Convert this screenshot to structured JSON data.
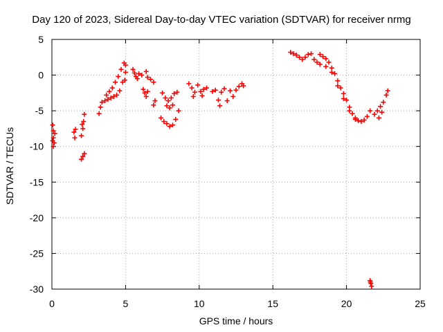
{
  "chart_data": {
    "type": "scatter",
    "title": "Day 120 of 2023, Sidereal Day-to-day VTEC variation (SDTVAR) for receiver nrmg",
    "xlabel": "GPS time / hours",
    "ylabel": "SDTVAR / TECUs",
    "xlim": [
      0,
      25
    ],
    "ylim": [
      -30,
      5
    ],
    "xticks": [
      "0",
      "5",
      "10",
      "15",
      "20",
      "25"
    ],
    "yticks": [
      "5",
      "0",
      "-5",
      "-10",
      "-15",
      "-20",
      "-25",
      "-30"
    ],
    "grid": true,
    "legend": "none",
    "marker": "plus",
    "color": "#ff0000",
    "series": [
      {
        "name": "SDTVAR",
        "points": [
          [
            0.05,
            -7.0
          ],
          [
            0.1,
            -7.8
          ],
          [
            0.1,
            -8.8
          ],
          [
            0.15,
            -9.5
          ],
          [
            0.1,
            -10.0
          ],
          [
            0.2,
            -8.2
          ],
          [
            0.05,
            -9.2
          ],
          [
            1.5,
            -8.0
          ],
          [
            1.55,
            -8.8
          ],
          [
            1.6,
            -7.6
          ],
          [
            2.0,
            -8.5
          ],
          [
            2.1,
            -7.5
          ],
          [
            2.15,
            -6.5
          ],
          [
            2.2,
            -5.5
          ],
          [
            2.05,
            -6.9
          ],
          [
            2.0,
            -11.8
          ],
          [
            2.1,
            -11.4
          ],
          [
            2.2,
            -11.0
          ],
          [
            3.2,
            -5.4
          ],
          [
            3.3,
            -4.5
          ],
          [
            3.4,
            -3.8
          ],
          [
            3.6,
            -3.6
          ],
          [
            3.8,
            -3.4
          ],
          [
            4.0,
            -3.2
          ],
          [
            4.2,
            -3.0
          ],
          [
            4.4,
            -2.8
          ],
          [
            4.6,
            -2.2
          ],
          [
            4.8,
            -1.0
          ],
          [
            3.7,
            -2.8
          ],
          [
            3.9,
            -2.3
          ],
          [
            4.1,
            -1.8
          ],
          [
            4.3,
            -1.0
          ],
          [
            4.5,
            -0.2
          ],
          [
            4.7,
            0.8
          ],
          [
            4.9,
            1.7
          ],
          [
            5.0,
            1.4
          ],
          [
            5.0,
            0.4
          ],
          [
            4.95,
            -0.7
          ],
          [
            5.5,
            0.8
          ],
          [
            5.6,
            0.3
          ],
          [
            5.7,
            -0.2
          ],
          [
            5.8,
            -0.5
          ],
          [
            5.9,
            0.2
          ],
          [
            6.1,
            0.0
          ],
          [
            6.4,
            0.5
          ],
          [
            6.5,
            -0.3
          ],
          [
            6.7,
            -0.6
          ],
          [
            6.9,
            -1.0
          ],
          [
            6.2,
            -2.0
          ],
          [
            6.3,
            -2.5
          ],
          [
            6.4,
            -3.0
          ],
          [
            6.5,
            -2.3
          ],
          [
            6.9,
            -4.2
          ],
          [
            7.0,
            -3.6
          ],
          [
            7.5,
            -2.5
          ],
          [
            7.7,
            -3.2
          ],
          [
            7.9,
            -3.6
          ],
          [
            8.1,
            -3.2
          ],
          [
            8.3,
            -2.6
          ],
          [
            8.5,
            -2.4
          ],
          [
            7.8,
            -4.3
          ],
          [
            8.0,
            -4.6
          ],
          [
            8.2,
            -4.2
          ],
          [
            7.4,
            -6.0
          ],
          [
            7.6,
            -6.5
          ],
          [
            7.8,
            -6.8
          ],
          [
            8.0,
            -7.2
          ],
          [
            8.2,
            -7.0
          ],
          [
            8.4,
            -6.2
          ],
          [
            8.6,
            -5.0
          ],
          [
            9.3,
            -1.2
          ],
          [
            9.5,
            -1.8
          ],
          [
            9.7,
            -2.4
          ],
          [
            9.9,
            -1.4
          ],
          [
            10.1,
            -2.3
          ],
          [
            10.3,
            -2.0
          ],
          [
            10.5,
            -1.8
          ],
          [
            9.6,
            -3.0
          ],
          [
            10.2,
            -2.9
          ],
          [
            10.9,
            -2.3
          ],
          [
            11.1,
            -2.1
          ],
          [
            11.3,
            -3.5
          ],
          [
            11.5,
            -2.4
          ],
          [
            11.7,
            -1.9
          ],
          [
            11.9,
            -3.6
          ],
          [
            12.1,
            -2.2
          ],
          [
            12.3,
            -3.0
          ],
          [
            12.5,
            -2.1
          ],
          [
            12.7,
            -1.6
          ],
          [
            12.9,
            -1.2
          ],
          [
            13.0,
            -1.5
          ],
          [
            11.4,
            -4.3
          ],
          [
            16.2,
            3.2
          ],
          [
            16.4,
            3.0
          ],
          [
            16.6,
            2.8
          ],
          [
            16.8,
            2.5
          ],
          [
            17.0,
            2.2
          ],
          [
            17.2,
            2.5
          ],
          [
            17.4,
            2.9
          ],
          [
            17.6,
            3.0
          ],
          [
            17.8,
            2.2
          ],
          [
            18.0,
            1.8
          ],
          [
            18.2,
            2.9
          ],
          [
            18.4,
            2.6
          ],
          [
            18.6,
            2.3
          ],
          [
            18.8,
            1.8
          ],
          [
            19.0,
            1.0
          ],
          [
            19.2,
            0.2
          ],
          [
            19.4,
            -0.8
          ],
          [
            19.6,
            -1.8
          ],
          [
            19.8,
            -2.6
          ],
          [
            20.0,
            -3.5
          ],
          [
            20.2,
            -4.5
          ],
          [
            20.4,
            -5.4
          ],
          [
            20.6,
            -6.0
          ],
          [
            20.8,
            -6.4
          ],
          [
            21.0,
            -6.5
          ],
          [
            21.2,
            -6.3
          ],
          [
            21.4,
            -5.8
          ],
          [
            21.6,
            -5.0
          ],
          [
            18.2,
            1.5
          ],
          [
            18.6,
            1.2
          ],
          [
            19.0,
            0.4
          ],
          [
            19.4,
            -1.5
          ],
          [
            19.8,
            -3.3
          ],
          [
            20.2,
            -5.0
          ],
          [
            20.6,
            -6.2
          ],
          [
            21.9,
            -5.5
          ],
          [
            22.1,
            -5.0
          ],
          [
            22.3,
            -4.4
          ],
          [
            22.5,
            -3.8
          ],
          [
            22.7,
            -2.8
          ],
          [
            22.8,
            -2.2
          ],
          [
            22.2,
            -6.0
          ],
          [
            22.4,
            -5.2
          ],
          [
            21.6,
            -28.8
          ],
          [
            21.65,
            -29.2
          ],
          [
            21.7,
            -29.6
          ],
          [
            21.62,
            -29.0
          ]
        ]
      }
    ]
  }
}
